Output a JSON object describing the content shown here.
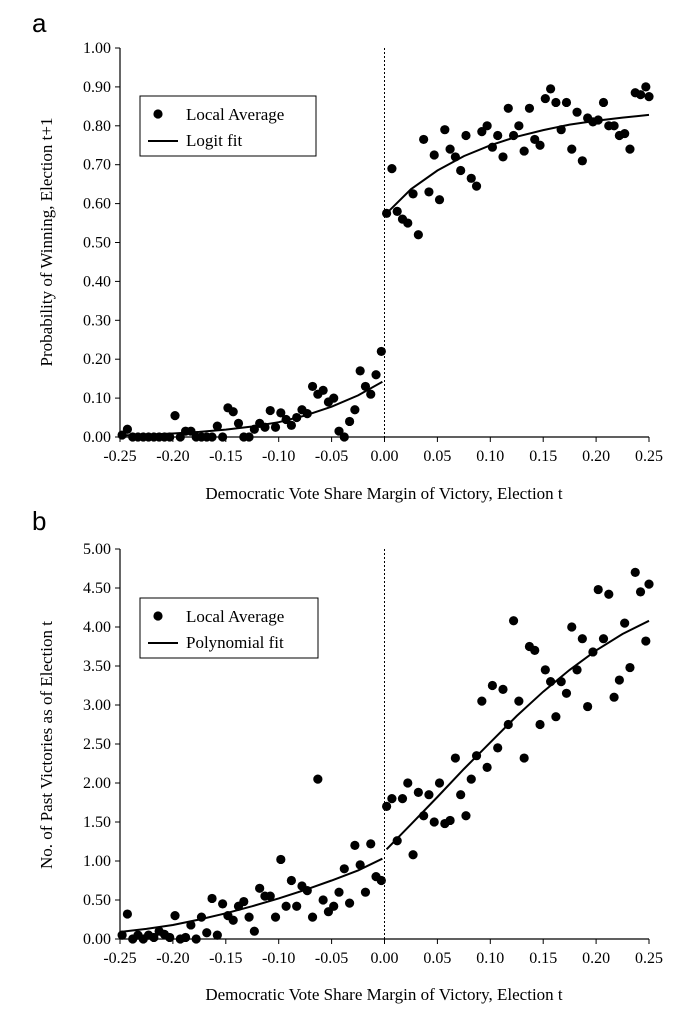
{
  "chart_data": [
    {
      "panel_label": "a",
      "type": "scatter",
      "xlabel": "Democratic Vote Share Margin of  Victory, Election t",
      "ylabel": "Probability of  Winning, Election t+1",
      "xlim": [
        -0.25,
        0.25
      ],
      "ylim": [
        0,
        1
      ],
      "x_ticks": [
        "-0.25",
        "-0.20",
        "-0.15",
        "-0.10",
        "-0.05",
        "0.00",
        "0.05",
        "0.10",
        "0.15",
        "0.20",
        "0.25"
      ],
      "y_ticks": [
        "0.00",
        "0.10",
        "0.20",
        "0.30",
        "0.40",
        "0.50",
        "0.60",
        "0.70",
        "0.80",
        "0.90",
        "1.00"
      ],
      "grid": false,
      "legend_position": "top-left",
      "cutoff_line_x": 0,
      "series": [
        {
          "name": "Local Average",
          "kind": "scatter",
          "points": [
            [
              -0.248,
              0.005
            ],
            [
              -0.243,
              0.02
            ],
            [
              -0.238,
              0.0
            ],
            [
              -0.233,
              0.0
            ],
            [
              -0.228,
              0.0
            ],
            [
              -0.223,
              0.0
            ],
            [
              -0.218,
              0.0
            ],
            [
              -0.213,
              0.0
            ],
            [
              -0.208,
              0.0
            ],
            [
              -0.203,
              0.0
            ],
            [
              -0.198,
              0.055
            ],
            [
              -0.193,
              0.0
            ],
            [
              -0.188,
              0.015
            ],
            [
              -0.183,
              0.015
            ],
            [
              -0.178,
              0.0
            ],
            [
              -0.173,
              0.0
            ],
            [
              -0.168,
              0.0
            ],
            [
              -0.163,
              0.0
            ],
            [
              -0.158,
              0.028
            ],
            [
              -0.153,
              0.0
            ],
            [
              -0.148,
              0.075
            ],
            [
              -0.143,
              0.065
            ],
            [
              -0.138,
              0.035
            ],
            [
              -0.133,
              0.0
            ],
            [
              -0.128,
              0.0
            ],
            [
              -0.123,
              0.02
            ],
            [
              -0.118,
              0.035
            ],
            [
              -0.113,
              0.025
            ],
            [
              -0.108,
              0.068
            ],
            [
              -0.103,
              0.025
            ],
            [
              -0.098,
              0.062
            ],
            [
              -0.093,
              0.045
            ],
            [
              -0.088,
              0.03
            ],
            [
              -0.083,
              0.05
            ],
            [
              -0.078,
              0.07
            ],
            [
              -0.073,
              0.06
            ],
            [
              -0.068,
              0.13
            ],
            [
              -0.063,
              0.11
            ],
            [
              -0.058,
              0.12
            ],
            [
              -0.053,
              0.09
            ],
            [
              -0.048,
              0.1
            ],
            [
              -0.043,
              0.015
            ],
            [
              -0.038,
              0.0
            ],
            [
              -0.033,
              0.04
            ],
            [
              -0.028,
              0.07
            ],
            [
              -0.023,
              0.17
            ],
            [
              -0.018,
              0.13
            ],
            [
              -0.013,
              0.11
            ],
            [
              -0.008,
              0.16
            ],
            [
              -0.003,
              0.22
            ],
            [
              0.002,
              0.575
            ],
            [
              0.007,
              0.69
            ],
            [
              0.012,
              0.58
            ],
            [
              0.017,
              0.56
            ],
            [
              0.022,
              0.55
            ],
            [
              0.027,
              0.625
            ],
            [
              0.032,
              0.52
            ],
            [
              0.037,
              0.765
            ],
            [
              0.042,
              0.63
            ],
            [
              0.047,
              0.725
            ],
            [
              0.052,
              0.61
            ],
            [
              0.057,
              0.79
            ],
            [
              0.062,
              0.74
            ],
            [
              0.067,
              0.72
            ],
            [
              0.072,
              0.685
            ],
            [
              0.077,
              0.775
            ],
            [
              0.082,
              0.665
            ],
            [
              0.087,
              0.645
            ],
            [
              0.092,
              0.785
            ],
            [
              0.097,
              0.8
            ],
            [
              0.102,
              0.745
            ],
            [
              0.107,
              0.775
            ],
            [
              0.112,
              0.72
            ],
            [
              0.117,
              0.845
            ],
            [
              0.122,
              0.775
            ],
            [
              0.127,
              0.8
            ],
            [
              0.132,
              0.735
            ],
            [
              0.137,
              0.845
            ],
            [
              0.142,
              0.765
            ],
            [
              0.147,
              0.75
            ],
            [
              0.152,
              0.87
            ],
            [
              0.157,
              0.895
            ],
            [
              0.162,
              0.86
            ],
            [
              0.167,
              0.79
            ],
            [
              0.172,
              0.86
            ],
            [
              0.177,
              0.74
            ],
            [
              0.182,
              0.835
            ],
            [
              0.187,
              0.71
            ],
            [
              0.192,
              0.82
            ],
            [
              0.197,
              0.81
            ],
            [
              0.202,
              0.815
            ],
            [
              0.207,
              0.86
            ],
            [
              0.212,
              0.8
            ],
            [
              0.217,
              0.8
            ],
            [
              0.222,
              0.775
            ],
            [
              0.227,
              0.78
            ],
            [
              0.232,
              0.74
            ],
            [
              0.237,
              0.885
            ],
            [
              0.242,
              0.88
            ],
            [
              0.247,
              0.9
            ],
            [
              0.25,
              0.875
            ]
          ]
        },
        {
          "name": "Logit fit",
          "kind": "line",
          "segments": [
            [
              [
                -0.25,
                0.004
              ],
              [
                -0.225,
                0.006
              ],
              [
                -0.2,
                0.009
              ],
              [
                -0.175,
                0.013
              ],
              [
                -0.15,
                0.019
              ],
              [
                -0.125,
                0.027
              ],
              [
                -0.1,
                0.038
              ],
              [
                -0.075,
                0.055
              ],
              [
                -0.05,
                0.078
              ],
              [
                -0.025,
                0.107
              ],
              [
                -0.002,
                0.142
              ]
            ],
            [
              [
                0.002,
                0.575
              ],
              [
                0.025,
                0.637
              ],
              [
                0.05,
                0.685
              ],
              [
                0.075,
                0.722
              ],
              [
                0.1,
                0.75
              ],
              [
                0.125,
                0.772
              ],
              [
                0.15,
                0.789
              ],
              [
                0.175,
                0.803
              ],
              [
                0.2,
                0.813
              ],
              [
                0.225,
                0.821
              ],
              [
                0.25,
                0.828
              ]
            ]
          ]
        }
      ]
    },
    {
      "panel_label": "b",
      "type": "scatter",
      "xlabel": "Democratic Vote Share Margin of Victory, Election t",
      "ylabel": "No. of  Past Victories as of  Election t",
      "xlim": [
        -0.25,
        0.25
      ],
      "ylim": [
        0,
        5
      ],
      "x_ticks": [
        "-0.25",
        "-0.20",
        "-0.15",
        "-0.10",
        "-0.05",
        "0.00",
        "0.05",
        "0.10",
        "0.15",
        "0.20",
        "0.25"
      ],
      "y_ticks": [
        "0.00",
        "0.50",
        "1.00",
        "1.50",
        "2.00",
        "2.50",
        "3.00",
        "3.50",
        "4.00",
        "4.50",
        "5.00"
      ],
      "grid": false,
      "legend_position": "top-left",
      "cutoff_line_x": 0,
      "series": [
        {
          "name": "Local Average",
          "kind": "scatter",
          "points": [
            [
              -0.248,
              0.05
            ],
            [
              -0.243,
              0.32
            ],
            [
              -0.238,
              0.0
            ],
            [
              -0.233,
              0.05
            ],
            [
              -0.228,
              0.0
            ],
            [
              -0.223,
              0.05
            ],
            [
              -0.218,
              0.02
            ],
            [
              -0.213,
              0.1
            ],
            [
              -0.208,
              0.06
            ],
            [
              -0.203,
              0.02
            ],
            [
              -0.198,
              0.3
            ],
            [
              -0.193,
              0.0
            ],
            [
              -0.188,
              0.02
            ],
            [
              -0.183,
              0.18
            ],
            [
              -0.178,
              0.0
            ],
            [
              -0.173,
              0.28
            ],
            [
              -0.168,
              0.08
            ],
            [
              -0.163,
              0.52
            ],
            [
              -0.158,
              0.05
            ],
            [
              -0.153,
              0.45
            ],
            [
              -0.148,
              0.3
            ],
            [
              -0.143,
              0.24
            ],
            [
              -0.138,
              0.42
            ],
            [
              -0.133,
              0.48
            ],
            [
              -0.128,
              0.28
            ],
            [
              -0.123,
              0.1
            ],
            [
              -0.118,
              0.65
            ],
            [
              -0.113,
              0.55
            ],
            [
              -0.108,
              0.55
            ],
            [
              -0.103,
              0.28
            ],
            [
              -0.098,
              1.02
            ],
            [
              -0.093,
              0.42
            ],
            [
              -0.088,
              0.75
            ],
            [
              -0.083,
              0.42
            ],
            [
              -0.078,
              0.68
            ],
            [
              -0.073,
              0.62
            ],
            [
              -0.068,
              0.28
            ],
            [
              -0.063,
              2.05
            ],
            [
              -0.058,
              0.5
            ],
            [
              -0.053,
              0.35
            ],
            [
              -0.048,
              0.42
            ],
            [
              -0.043,
              0.6
            ],
            [
              -0.038,
              0.9
            ],
            [
              -0.033,
              0.46
            ],
            [
              -0.028,
              1.2
            ],
            [
              -0.023,
              0.95
            ],
            [
              -0.018,
              0.6
            ],
            [
              -0.013,
              1.22
            ],
            [
              -0.008,
              0.8
            ],
            [
              -0.003,
              0.75
            ],
            [
              0.002,
              1.7
            ],
            [
              0.007,
              1.8
            ],
            [
              0.012,
              1.26
            ],
            [
              0.017,
              1.8
            ],
            [
              0.022,
              2.0
            ],
            [
              0.027,
              1.08
            ],
            [
              0.032,
              1.88
            ],
            [
              0.037,
              1.58
            ],
            [
              0.042,
              1.85
            ],
            [
              0.047,
              1.5
            ],
            [
              0.052,
              2.0
            ],
            [
              0.057,
              1.48
            ],
            [
              0.062,
              1.52
            ],
            [
              0.067,
              2.32
            ],
            [
              0.072,
              1.85
            ],
            [
              0.077,
              1.58
            ],
            [
              0.082,
              2.05
            ],
            [
              0.087,
              2.35
            ],
            [
              0.092,
              3.05
            ],
            [
              0.097,
              2.2
            ],
            [
              0.102,
              3.25
            ],
            [
              0.107,
              2.45
            ],
            [
              0.112,
              3.2
            ],
            [
              0.117,
              2.75
            ],
            [
              0.122,
              4.08
            ],
            [
              0.127,
              3.05
            ],
            [
              0.132,
              2.32
            ],
            [
              0.137,
              3.75
            ],
            [
              0.142,
              3.7
            ],
            [
              0.147,
              2.75
            ],
            [
              0.152,
              3.45
            ],
            [
              0.157,
              3.3
            ],
            [
              0.162,
              2.85
            ],
            [
              0.167,
              3.3
            ],
            [
              0.172,
              3.15
            ],
            [
              0.177,
              4.0
            ],
            [
              0.182,
              3.45
            ],
            [
              0.187,
              3.85
            ],
            [
              0.192,
              2.98
            ],
            [
              0.197,
              3.68
            ],
            [
              0.202,
              4.48
            ],
            [
              0.207,
              3.85
            ],
            [
              0.212,
              4.42
            ],
            [
              0.217,
              3.1
            ],
            [
              0.222,
              3.32
            ],
            [
              0.227,
              4.05
            ],
            [
              0.232,
              3.48
            ],
            [
              0.237,
              4.7
            ],
            [
              0.242,
              4.45
            ],
            [
              0.247,
              3.82
            ],
            [
              0.25,
              4.55
            ]
          ]
        },
        {
          "name": "Polynomial fit",
          "kind": "line",
          "segments": [
            [
              [
                -0.25,
                0.09
              ],
              [
                -0.225,
                0.13
              ],
              [
                -0.2,
                0.18
              ],
              [
                -0.175,
                0.25
              ],
              [
                -0.15,
                0.33
              ],
              [
                -0.125,
                0.42
              ],
              [
                -0.1,
                0.52
              ],
              [
                -0.075,
                0.63
              ],
              [
                -0.05,
                0.75
              ],
              [
                -0.025,
                0.88
              ],
              [
                -0.002,
                1.03
              ]
            ],
            [
              [
                0.002,
                1.15
              ],
              [
                0.025,
                1.47
              ],
              [
                0.05,
                1.82
              ],
              [
                0.075,
                2.18
              ],
              [
                0.1,
                2.52
              ],
              [
                0.125,
                2.86
              ],
              [
                0.15,
                3.17
              ],
              [
                0.175,
                3.45
              ],
              [
                0.2,
                3.7
              ],
              [
                0.225,
                3.91
              ],
              [
                0.25,
                4.08
              ]
            ]
          ]
        }
      ]
    }
  ]
}
